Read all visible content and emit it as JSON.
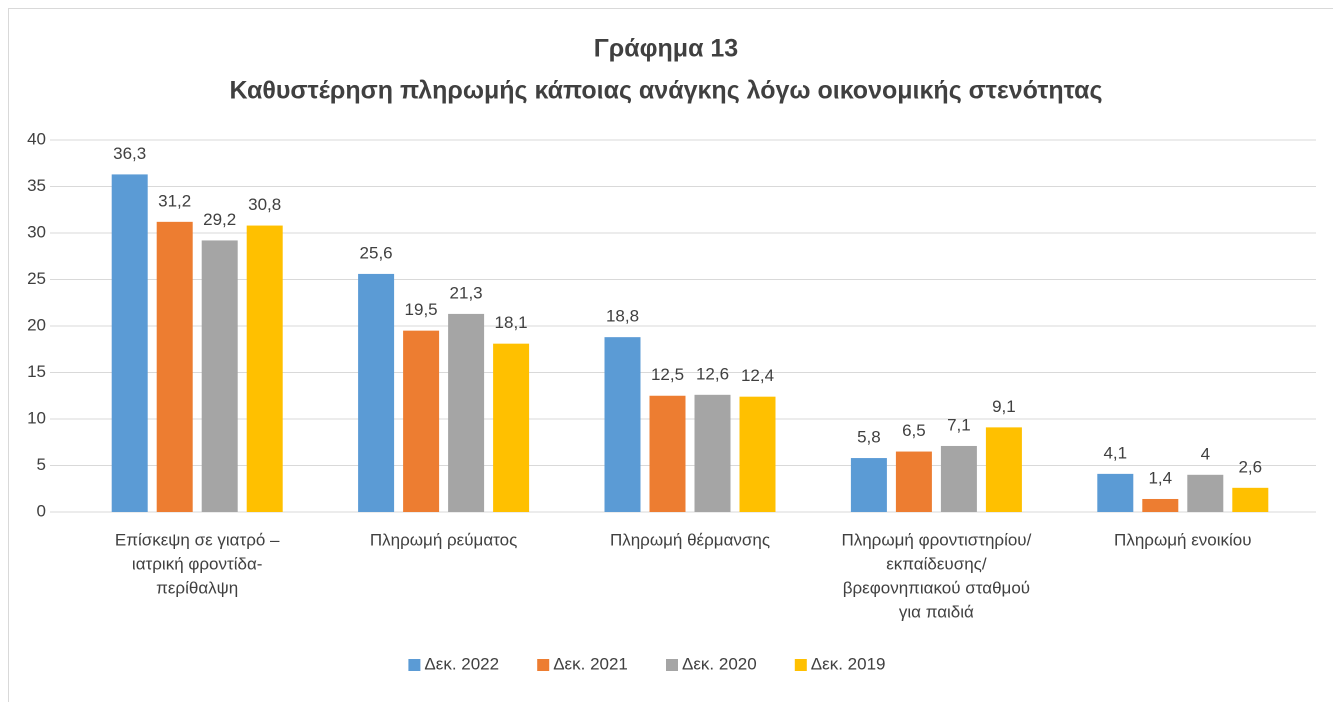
{
  "chart_data": {
    "type": "bar",
    "title": "Γράφημα 13",
    "subtitle": "Καθυστέρηση πληρωμής κάποιας ανάγκης λόγω οικονομικής στενότητας",
    "categories": [
      [
        "Επίσκεψη σε γιατρό –",
        "ιατρική φροντίδα-",
        "περίθαλψη"
      ],
      [
        "Πληρωμή ρεύματος"
      ],
      [
        "Πληρωμή θέρμανσης"
      ],
      [
        "Πληρωμή φροντιστηρίου/",
        "εκπαίδευσης/",
        "βρεφονηπιακού σταθμού",
        "για παιδιά"
      ],
      [
        "Πληρωμή ενοικίου"
      ]
    ],
    "series": [
      {
        "name": "Δεκ. 2022",
        "color": "#5b9bd5",
        "values": [
          36.3,
          25.6,
          18.8,
          5.8,
          4.1
        ],
        "value_labels": [
          "36,3",
          "25,6",
          "18,8",
          "5,8",
          "4,1"
        ]
      },
      {
        "name": "Δεκ. 2021",
        "color": "#ed7d31",
        "values": [
          31.2,
          19.5,
          12.5,
          6.5,
          1.4
        ],
        "value_labels": [
          "31,2",
          "19,5",
          "12,5",
          "6,5",
          "1,4"
        ]
      },
      {
        "name": "Δεκ. 2020",
        "color": "#a5a5a5",
        "values": [
          29.2,
          21.3,
          12.6,
          7.1,
          4
        ],
        "value_labels": [
          "29,2",
          "21,3",
          "12,6",
          "7,1",
          "4"
        ]
      },
      {
        "name": "Δεκ. 2019",
        "color": "#ffc000",
        "values": [
          30.8,
          18.1,
          12.4,
          9.1,
          2.6
        ],
        "value_labels": [
          "30,8",
          "18,1",
          "12,4",
          "9,1",
          "2,6"
        ]
      }
    ],
    "ylim": [
      0,
      40
    ],
    "yticks": [
      0,
      5,
      10,
      15,
      20,
      25,
      30,
      35,
      40
    ],
    "grid": true,
    "legend": "bottom"
  }
}
